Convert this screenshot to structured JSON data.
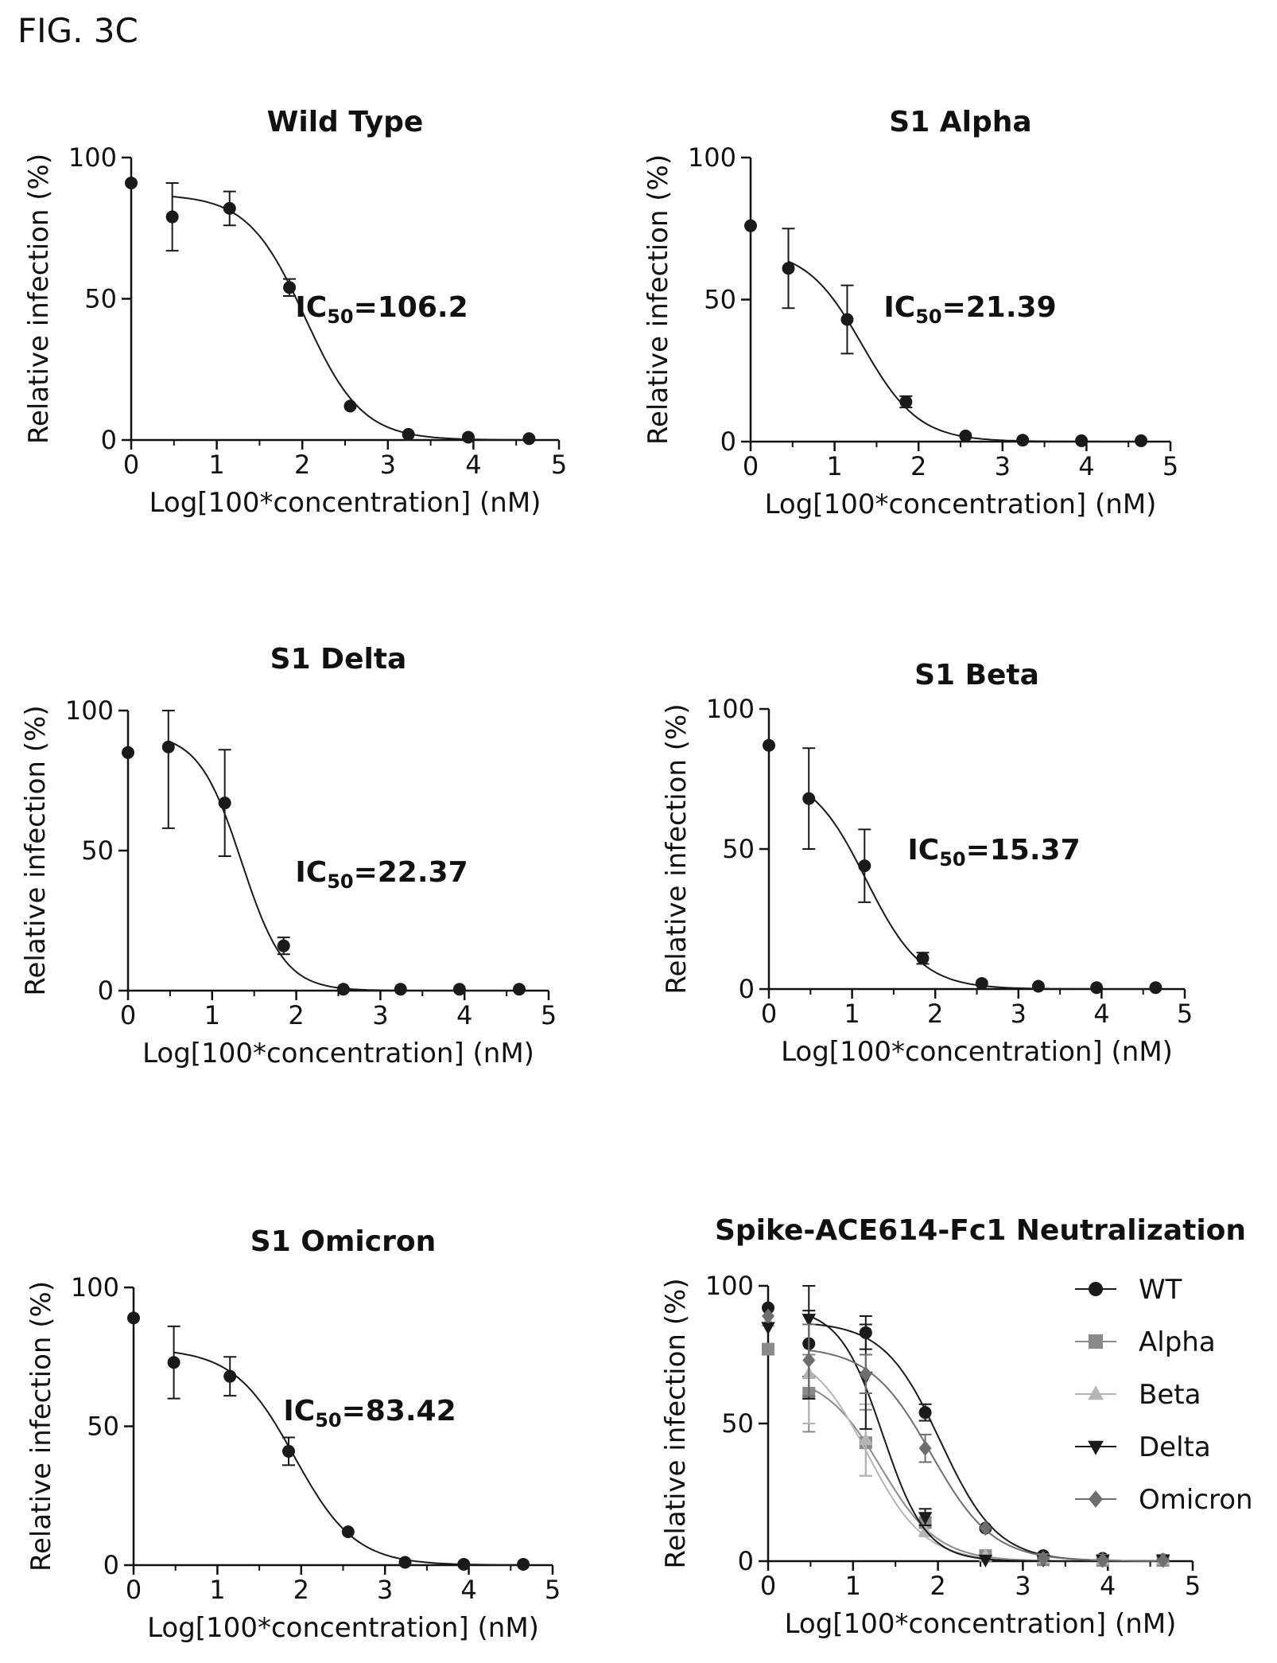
{
  "figure_label": "FIG. 3C",
  "chart_data": [
    {
      "type": "scatter",
      "title": "Wild Type",
      "xlabel": "Log[100*concentration] (nM)",
      "ylabel": "Relative infection (%)",
      "xlim": [
        0,
        5
      ],
      "ylim": [
        0,
        100
      ],
      "xticks": [
        "0",
        "1",
        "2",
        "3",
        "4",
        "5"
      ],
      "yticks": [
        "0",
        "50",
        "100"
      ],
      "annotation": {
        "prefix": "IC",
        "sub": "50",
        "value": "=106.2"
      },
      "series": [
        {
          "x": [
            0,
            0.48,
            1.15,
            1.85,
            2.56,
            3.24,
            3.94,
            4.65
          ],
          "y": [
            91,
            79,
            82,
            54,
            12,
            2,
            1,
            0.5
          ],
          "err": [
            0,
            12,
            6,
            3,
            0,
            0,
            0,
            0
          ],
          "fit": {
            "top": 87,
            "bottom": 0,
            "logIC50": 2.03,
            "hill": 1.3
          }
        }
      ]
    },
    {
      "type": "scatter",
      "title": "S1 Alpha",
      "xlabel": "Log[100*concentration] (nM)",
      "ylabel": "Relative infection (%)",
      "xlim": [
        0,
        5
      ],
      "ylim": [
        0,
        100
      ],
      "xticks": [
        "0",
        "1",
        "2",
        "3",
        "4",
        "5"
      ],
      "yticks": [
        "0",
        "50",
        "100"
      ],
      "annotation": {
        "prefix": "IC",
        "sub": "50",
        "value": "=21.39"
      },
      "series": [
        {
          "x": [
            0,
            0.45,
            1.15,
            1.85,
            2.56,
            3.24,
            3.94,
            4.65
          ],
          "y": [
            76,
            61,
            43,
            14,
            2,
            0.5,
            0.3,
            0.3
          ],
          "err": [
            0,
            14,
            12,
            2,
            0,
            0,
            0,
            0
          ],
          "fit": {
            "top": 68,
            "bottom": 0,
            "logIC50": 1.33,
            "hill": 1.3
          }
        }
      ]
    },
    {
      "type": "scatter",
      "title": "S1 Delta",
      "xlabel": "Log[100*concentration] (nM)",
      "ylabel": "Relative infection (%)",
      "xlim": [
        0,
        5
      ],
      "ylim": [
        0,
        100
      ],
      "xticks": [
        "0",
        "1",
        "2",
        "3",
        "4",
        "5"
      ],
      "yticks": [
        "0",
        "50",
        "100"
      ],
      "annotation": {
        "prefix": "IC",
        "sub": "50",
        "value": "=22.37"
      },
      "series": [
        {
          "x": [
            0,
            0.48,
            1.15,
            1.85,
            2.56,
            3.24,
            3.94,
            4.65
          ],
          "y": [
            85,
            87,
            67,
            16,
            0.5,
            0.5,
            0.5,
            0.5
          ],
          "err": [
            0,
            29,
            19,
            3,
            0,
            0,
            0,
            0
          ],
          "fit": {
            "top": 92,
            "bottom": 0,
            "logIC50": 1.35,
            "hill": 1.7
          }
        }
      ]
    },
    {
      "type": "scatter",
      "title": "S1 Beta",
      "xlabel": "Log[100*concentration] (nM)",
      "ylabel": "Relative infection (%)",
      "xlim": [
        0,
        5
      ],
      "ylim": [
        0,
        100
      ],
      "xticks": [
        "0",
        "1",
        "2",
        "3",
        "4",
        "5"
      ],
      "yticks": [
        "0",
        "50",
        "100"
      ],
      "annotation": {
        "prefix": "IC",
        "sub": "50",
        "value": "=15.37"
      },
      "series": [
        {
          "x": [
            0,
            0.48,
            1.15,
            1.85,
            2.56,
            3.24,
            3.94,
            4.65
          ],
          "y": [
            87,
            68,
            44,
            11,
            2,
            1,
            0.5,
            0.5
          ],
          "err": [
            0,
            18,
            13,
            2,
            0,
            0,
            0,
            0
          ],
          "fit": {
            "top": 78,
            "bottom": 0,
            "logIC50": 1.17,
            "hill": 1.3
          }
        }
      ]
    },
    {
      "type": "scatter",
      "title": "S1 Omicron",
      "xlabel": "Log[100*concentration] (nM)",
      "ylabel": "Relative infection (%)",
      "xlim": [
        0,
        5
      ],
      "ylim": [
        0,
        100
      ],
      "xticks": [
        "0",
        "1",
        "2",
        "3",
        "4",
        "5"
      ],
      "yticks": [
        "0",
        "50",
        "100"
      ],
      "annotation": {
        "prefix": "IC",
        "sub": "50",
        "value": "=83.42"
      },
      "series": [
        {
          "x": [
            0,
            0.48,
            1.15,
            1.85,
            2.56,
            3.24,
            3.94,
            4.65
          ],
          "y": [
            89,
            73,
            68,
            41,
            12,
            1,
            0.3,
            0.3
          ],
          "err": [
            0,
            13,
            7,
            5,
            0,
            0,
            0,
            0
          ],
          "fit": {
            "top": 78,
            "bottom": 0,
            "logIC50": 1.92,
            "hill": 1.2
          }
        }
      ]
    },
    {
      "type": "scatter",
      "title": "Spike-ACE614-Fc1 Neutralization",
      "xlabel": "Log[100*concentration] (nM)",
      "ylabel": "Relative infection (%)",
      "xlim": [
        0,
        5
      ],
      "ylim": [
        0,
        100
      ],
      "xticks": [
        "0",
        "1",
        "2",
        "3",
        "4",
        "5"
      ],
      "yticks": [
        "0",
        "50",
        "100"
      ],
      "legend": "right",
      "series": [
        {
          "name": "WT",
          "marker": "circle",
          "color": "#1a1a1a",
          "x": [
            0,
            0.48,
            1.15,
            1.85,
            2.56,
            3.24,
            3.94,
            4.65
          ],
          "y": [
            92,
            79,
            83,
            54,
            12,
            2,
            1,
            0.5
          ],
          "err": [
            0,
            12,
            6,
            3,
            0,
            0,
            0,
            0
          ],
          "fit": {
            "top": 87,
            "bottom": 0,
            "logIC50": 2.03,
            "hill": 1.3
          }
        },
        {
          "name": "Alpha",
          "marker": "square",
          "color": "#8a8a8a",
          "x": [
            0,
            0.48,
            1.15,
            1.85,
            2.56,
            3.24,
            3.94,
            4.65
          ],
          "y": [
            77,
            61,
            43,
            14,
            2,
            0.5,
            0.3,
            0.3
          ],
          "err": [
            0,
            14,
            12,
            2,
            0,
            0,
            0,
            0
          ],
          "fit": {
            "top": 68,
            "bottom": 0,
            "logIC50": 1.33,
            "hill": 1.3
          }
        },
        {
          "name": "Beta",
          "marker": "triangle",
          "color": "#b5b5b5",
          "x": [
            0,
            0.48,
            1.15,
            1.85,
            2.56,
            3.24,
            3.94,
            4.65
          ],
          "y": [
            87,
            68,
            44,
            11,
            2,
            1,
            0.5,
            0.5
          ],
          "err": [
            0,
            18,
            13,
            2,
            0,
            0,
            0,
            0
          ],
          "fit": {
            "top": 78,
            "bottom": 0,
            "logIC50": 1.17,
            "hill": 1.3
          }
        },
        {
          "name": "Delta",
          "marker": "triangle-down",
          "color": "#1a1a1a",
          "x": [
            0,
            0.48,
            1.15,
            1.85,
            2.56,
            3.24,
            3.94,
            4.65
          ],
          "y": [
            85,
            88,
            67,
            16,
            0.5,
            0.5,
            0.5,
            0.5
          ],
          "err": [
            0,
            29,
            19,
            3,
            0,
            0,
            0,
            0
          ],
          "fit": {
            "top": 92,
            "bottom": 0,
            "logIC50": 1.35,
            "hill": 1.7
          }
        },
        {
          "name": "Omicron",
          "marker": "diamond",
          "color": "#6e6e6e",
          "x": [
            0,
            0.48,
            1.15,
            1.85,
            2.56,
            3.24,
            3.94,
            4.65
          ],
          "y": [
            89,
            73,
            68,
            41,
            12,
            1,
            0.3,
            0.3
          ],
          "err": [
            0,
            13,
            7,
            5,
            0,
            0,
            0,
            0
          ],
          "fit": {
            "top": 78,
            "bottom": 0,
            "logIC50": 1.92,
            "hill": 1.2
          }
        }
      ]
    }
  ]
}
